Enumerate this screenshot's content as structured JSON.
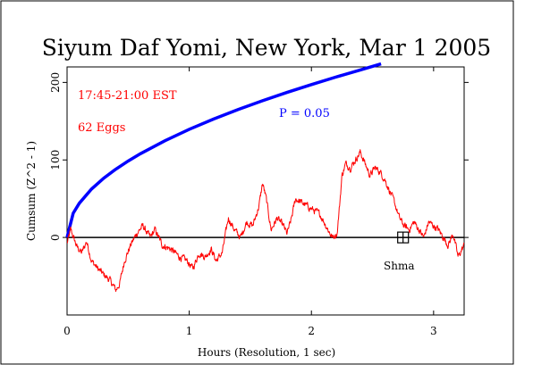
{
  "chart_data": {
    "type": "line",
    "title": "Siyum Daf Yomi, New York, Mar 1 2005",
    "xlabel": "Hours (Resolution, 1 sec)",
    "ylabel": "Cumsum (Z^2 - 1)",
    "xlim": [
      0,
      3.25
    ],
    "ylim": [
      -100,
      220
    ],
    "x_ticks": [
      0,
      1,
      2,
      3
    ],
    "x_tick_labels": [
      "0",
      "1",
      "2",
      "3"
    ],
    "y_ticks": [
      0,
      100,
      200
    ],
    "y_tick_labels": [
      "0",
      "100",
      "200"
    ],
    "grid": false,
    "annotations": [
      {
        "text": "17:45-21:00 EST",
        "color": "#ff0000"
      },
      {
        "text": "62 Eggs",
        "color": "#ff0000"
      },
      {
        "text": "P = 0.05",
        "color": "#0000ff"
      },
      {
        "text": "Shma",
        "color": "#000000"
      }
    ],
    "marker": {
      "x": 2.75,
      "y": 0,
      "shape": "boxed-cross"
    },
    "series": [
      {
        "role": "significance-envelope",
        "color": "#0000ff",
        "formula": "1.645 * sqrt(2 * N * t_seconds)",
        "x": [
          0,
          0.05,
          0.1,
          0.2,
          0.3,
          0.4,
          0.5,
          0.6,
          0.8,
          1.0,
          1.2,
          1.4,
          1.6,
          1.8,
          2.0,
          2.2,
          2.4,
          2.57
        ],
        "values": [
          0,
          31.2,
          44.1,
          62.4,
          76.4,
          88.2,
          98.6,
          108.0,
          124.7,
          139.5,
          152.8,
          165.0,
          176.4,
          187.1,
          197.2,
          206.9,
          216.1,
          224.0
        ]
      },
      {
        "role": "cumulative-deviation",
        "color": "#ff0000",
        "x": [
          0,
          0.03,
          0.08,
          0.12,
          0.16,
          0.2,
          0.25,
          0.3,
          0.35,
          0.4,
          0.43,
          0.47,
          0.52,
          0.57,
          0.62,
          0.68,
          0.72,
          0.78,
          0.85,
          0.92,
          0.98,
          1.03,
          1.08,
          1.13,
          1.18,
          1.22,
          1.27,
          1.32,
          1.37,
          1.42,
          1.47,
          1.52,
          1.57,
          1.6,
          1.63,
          1.67,
          1.72,
          1.77,
          1.8,
          1.83,
          1.87,
          1.92,
          1.97,
          2.02,
          2.07,
          2.12,
          2.17,
          2.21,
          2.23,
          2.25,
          2.28,
          2.32,
          2.36,
          2.4,
          2.44,
          2.48,
          2.52,
          2.56,
          2.6,
          2.64,
          2.68,
          2.72,
          2.76,
          2.8,
          2.84,
          2.88,
          2.92,
          2.96,
          3.0,
          3.04,
          3.08,
          3.12,
          3.16,
          3.2,
          3.25
        ],
        "values": [
          -8,
          10,
          -12,
          -20,
          -5,
          -30,
          -40,
          -48,
          -55,
          -68,
          -60,
          -30,
          -10,
          5,
          15,
          0,
          10,
          -10,
          -15,
          -25,
          -30,
          -40,
          -20,
          -25,
          -15,
          -30,
          -20,
          25,
          10,
          0,
          20,
          15,
          40,
          70,
          50,
          10,
          25,
          15,
          5,
          20,
          50,
          45,
          40,
          35,
          30,
          15,
          0,
          5,
          40,
          80,
          95,
          90,
          100,
          110,
          95,
          80,
          90,
          85,
          75,
          60,
          45,
          25,
          15,
          10,
          20,
          10,
          0,
          20,
          15,
          10,
          0,
          -10,
          5,
          -25,
          -10
        ]
      }
    ]
  }
}
